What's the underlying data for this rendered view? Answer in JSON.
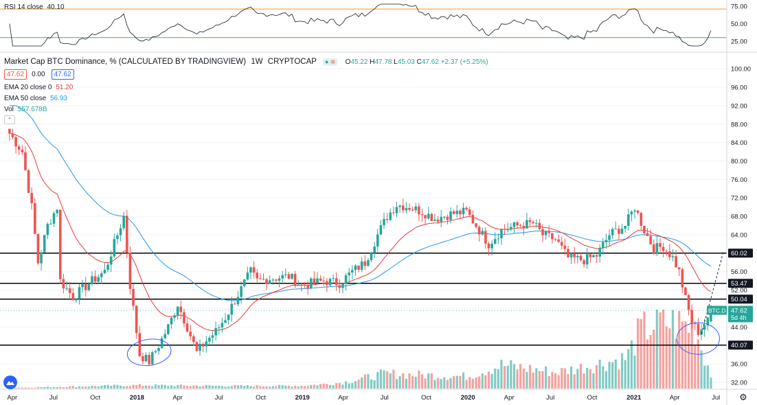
{
  "header": {
    "title": "Market Cap BTC Dominance, % (CALCULATED BY TRADINGVIEW)",
    "interval": "1W",
    "source": "CRYPTOCAP",
    "ohlc": {
      "o_label": "O",
      "o": "45.22",
      "h_label": "H",
      "h": "47.78",
      "l_label": "L",
      "l": "45.03",
      "c_label": "C",
      "c": "47.62",
      "change": "+2.37 (+5.25%)"
    },
    "value_box_1": "47.62",
    "value_box_2": "0.00",
    "value_box_3": "47.62"
  },
  "indicators": {
    "ema20_label": "EMA 20 close 0",
    "ema20_value": "51.20",
    "ema50_label": "EMA 50 close",
    "ema50_value": "56.93",
    "vol_label": "Vol",
    "vol_value": "557.678B"
  },
  "rsi": {
    "label": "RSI 14 close",
    "value": "40.10",
    "levels": [
      75,
      50,
      25
    ],
    "upper_band": 70,
    "lower_band": 30
  },
  "colors": {
    "up": "#26a69a",
    "down": "#ef5350",
    "ema20": "#e53935",
    "ema50": "#2196f3",
    "rsi_line": "#131722",
    "rsi_upper": "#ff9800",
    "rsi_lower": "#4caf50",
    "vol_up": "#80cbc4",
    "vol_down": "#f4a19f",
    "circle": "#2962ff"
  },
  "chart_data": {
    "type": "candlestick",
    "yaxis": {
      "ticks": [
        100,
        96,
        92,
        88,
        84,
        80,
        76,
        72,
        68,
        64,
        60,
        56,
        52,
        48,
        44,
        40,
        36,
        32
      ],
      "ylim": [
        30.5,
        103
      ]
    },
    "xaxis": {
      "labels": [
        "Apr",
        "Jul",
        "Oct",
        "2018",
        "Apr",
        "Jul",
        "Oct",
        "2019",
        "Apr",
        "Jul",
        "Oct",
        "2020",
        "Apr",
        "Jul",
        "Oct",
        "2021",
        "Apr",
        "Jul"
      ],
      "bold_labels": [
        "2018",
        "2019",
        "2020",
        "2021"
      ]
    },
    "horizontal_levels": [
      {
        "value": 60.02,
        "label": "60.02"
      },
      {
        "value": 53.47,
        "label": "53.47"
      },
      {
        "value": 50.04,
        "label": "50.04"
      },
      {
        "value": 40.07,
        "label": "40.07"
      }
    ],
    "current_price": {
      "symbol": "BTC.D",
      "value": "47.62",
      "countdown": "5d 4h"
    },
    "anchors": [
      {
        "t": "2017-03-26",
        "v": 86.0
      },
      {
        "t": "2017-04-23",
        "v": 82.0
      },
      {
        "t": "2017-05-14",
        "v": 70.0
      },
      {
        "t": "2017-05-28",
        "v": 58.0
      },
      {
        "t": "2017-06-18",
        "v": 66.0
      },
      {
        "t": "2017-07-09",
        "v": 70.0
      },
      {
        "t": "2017-07-16",
        "v": 54.0
      },
      {
        "t": "2017-08-13",
        "v": 50.5
      },
      {
        "t": "2017-09-24",
        "v": 54.0
      },
      {
        "t": "2017-10-22",
        "v": 56.0
      },
      {
        "t": "2017-11-12",
        "v": 62.0
      },
      {
        "t": "2017-12-03",
        "v": 68.0
      },
      {
        "t": "2017-12-17",
        "v": 53.0
      },
      {
        "t": "2018-01-07",
        "v": 38.0
      },
      {
        "t": "2018-01-28",
        "v": 36.5
      },
      {
        "t": "2018-02-18",
        "v": 40.0
      },
      {
        "t": "2018-03-11",
        "v": 44.0
      },
      {
        "t": "2018-04-01",
        "v": 49.0
      },
      {
        "t": "2018-04-22",
        "v": 44.0
      },
      {
        "t": "2018-05-13",
        "v": 38.5
      },
      {
        "t": "2018-06-03",
        "v": 41.0
      },
      {
        "t": "2018-06-24",
        "v": 43.0
      },
      {
        "t": "2018-07-15",
        "v": 46.0
      },
      {
        "t": "2018-08-12",
        "v": 51.0
      },
      {
        "t": "2018-09-09",
        "v": 56.0
      },
      {
        "t": "2018-09-23",
        "v": 54.0
      },
      {
        "t": "2018-10-21",
        "v": 54.5
      },
      {
        "t": "2018-12-02",
        "v": 55.0
      },
      {
        "t": "2018-12-30",
        "v": 53.0
      },
      {
        "t": "2019-02-17",
        "v": 54.0
      },
      {
        "t": "2019-03-24",
        "v": 53.5
      },
      {
        "t": "2019-04-21",
        "v": 56.0
      },
      {
        "t": "2019-05-19",
        "v": 58.0
      },
      {
        "t": "2019-06-16",
        "v": 64.0
      },
      {
        "t": "2019-07-07",
        "v": 68.0
      },
      {
        "t": "2019-07-28",
        "v": 70.5
      },
      {
        "t": "2019-08-25",
        "v": 70.0
      },
      {
        "t": "2019-09-22",
        "v": 69.0
      },
      {
        "t": "2019-10-20",
        "v": 67.5
      },
      {
        "t": "2019-11-24",
        "v": 68.5
      },
      {
        "t": "2019-12-29",
        "v": 69.0
      },
      {
        "t": "2020-01-26",
        "v": 65.0
      },
      {
        "t": "2020-02-16",
        "v": 62.0
      },
      {
        "t": "2020-03-15",
        "v": 65.0
      },
      {
        "t": "2020-04-19",
        "v": 66.0
      },
      {
        "t": "2020-05-24",
        "v": 66.5
      },
      {
        "t": "2020-06-14",
        "v": 64.0
      },
      {
        "t": "2020-07-12",
        "v": 63.0
      },
      {
        "t": "2020-08-09",
        "v": 59.0
      },
      {
        "t": "2020-09-13",
        "v": 58.5
      },
      {
        "t": "2020-10-11",
        "v": 59.5
      },
      {
        "t": "2020-11-08",
        "v": 64.0
      },
      {
        "t": "2020-12-13",
        "v": 66.0
      },
      {
        "t": "2021-01-03",
        "v": 70.0
      },
      {
        "t": "2021-01-24",
        "v": 65.0
      },
      {
        "t": "2021-02-14",
        "v": 61.0
      },
      {
        "t": "2021-03-07",
        "v": 61.5
      },
      {
        "t": "2021-03-28",
        "v": 59.0
      },
      {
        "t": "2021-04-11",
        "v": 56.0
      },
      {
        "t": "2021-04-25",
        "v": 50.0
      },
      {
        "t": "2021-05-09",
        "v": 45.0
      },
      {
        "t": "2021-05-23",
        "v": 43.0
      },
      {
        "t": "2021-06-06",
        "v": 44.5
      },
      {
        "t": "2021-06-13",
        "v": 45.2
      },
      {
        "t": "2021-06-20",
        "v": 47.62
      }
    ],
    "volume_anchors": [
      {
        "t": "2017-03-26",
        "v": 1
      },
      {
        "t": "2017-12-31",
        "v": 5
      },
      {
        "t": "2018-06-30",
        "v": 4
      },
      {
        "t": "2018-12-31",
        "v": 4
      },
      {
        "t": "2019-04-01",
        "v": 9
      },
      {
        "t": "2019-07-01",
        "v": 22
      },
      {
        "t": "2019-12-31",
        "v": 18
      },
      {
        "t": "2020-03-15",
        "v": 35
      },
      {
        "t": "2020-07-15",
        "v": 24
      },
      {
        "t": "2020-12-15",
        "v": 45
      },
      {
        "t": "2021-01-15",
        "v": 85
      },
      {
        "t": "2021-02-28",
        "v": 100
      },
      {
        "t": "2021-05-15",
        "v": 92
      },
      {
        "t": "2021-06-20",
        "v": 20
      }
    ]
  }
}
